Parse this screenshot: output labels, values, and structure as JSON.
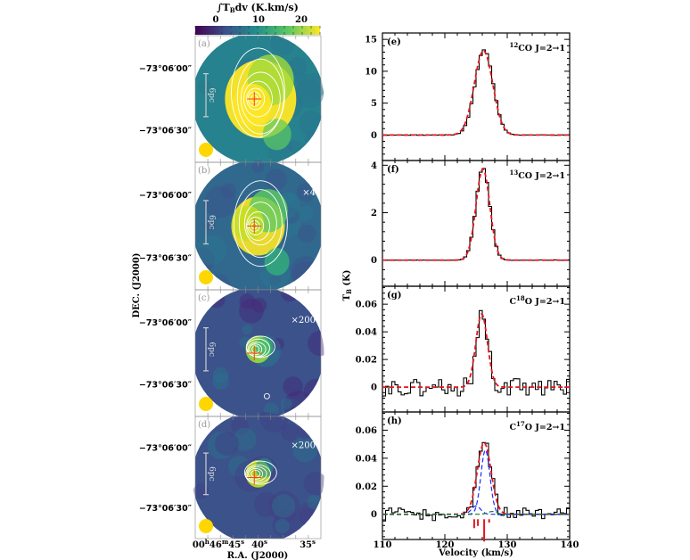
{
  "figure": {
    "colorbar": {
      "label": "∫T",
      "label_sub": "B",
      "label_rest": "dv  (K.km/s)",
      "ticks": [
        "0",
        "10",
        "20"
      ],
      "range": [
        -3,
        24
      ],
      "colormap": [
        "#440154",
        "#3b528b",
        "#21918c",
        "#5ec962",
        "#fde725"
      ]
    },
    "maps": {
      "dec_axis_label": "DEC. (J2000)",
      "ra_axis_label": "R.A. (J2000)",
      "dec_ticks": [
        "−73°06′00″",
        "−73°06′30″"
      ],
      "ra_ticks": [
        {
          "h": "00",
          "hs": "h",
          "m": "46",
          "ms": "m",
          "s": "45",
          "ss": "s"
        },
        {
          "s": "40",
          "ss": "s"
        },
        {
          "s": "35",
          "ss": "s"
        }
      ],
      "scale_bar_label": "6pc",
      "beam_color": "#ffd700",
      "marker_color": "#ff3b1a",
      "panels": [
        {
          "id": "(a)",
          "scale": "",
          "line": "12CO"
        },
        {
          "id": "(b)",
          "scale": "×4",
          "line": "13CO"
        },
        {
          "id": "(c)",
          "scale": "×200",
          "line": "C18O"
        },
        {
          "id": "(d)",
          "scale": "×200",
          "line": "C17O"
        }
      ]
    },
    "spectra_axis": {
      "xlabel": "Velocity (km/s)",
      "ylabel": "T",
      "ylabel_sub": "B",
      "ylabel_rest": " (K)",
      "x_ticks": [
        "110",
        "120",
        "130",
        "140"
      ]
    }
  },
  "chart_data": [
    {
      "type": "line",
      "title": "(e) 12CO J=2→1",
      "panel": "(e)",
      "line_label": {
        "pre": "",
        "sup": "12",
        "mol": "CO  J=2→1"
      },
      "xlabel": "Velocity (km/s)",
      "ylabel": "T_B (K)",
      "xlim": [
        110,
        140
      ],
      "ylim": [
        -4,
        16
      ],
      "y_ticks": [
        0,
        5,
        10,
        15
      ],
      "series": [
        {
          "name": "observed",
          "style": "histogram",
          "color": "#000000",
          "peak": 13.4,
          "center": 126.3,
          "fwhm": 3.4,
          "noise": 0.05
        },
        {
          "name": "gaussian fit",
          "style": "dashed",
          "color": "#e8141c",
          "peak": 13.2,
          "center": 126.2,
          "fwhm": 3.5
        }
      ]
    },
    {
      "type": "line",
      "title": "(f) 13CO J=2→1",
      "panel": "(f)",
      "line_label": {
        "pre": "",
        "sup": "13",
        "mol": "CO  J=2→1"
      },
      "xlabel": "Velocity (km/s)",
      "ylabel": "T_B (K)",
      "xlim": [
        110,
        140
      ],
      "ylim": [
        -1.1,
        4.2
      ],
      "y_ticks": [
        0,
        2,
        4
      ],
      "series": [
        {
          "name": "observed",
          "style": "histogram",
          "color": "#000000",
          "peak": 3.9,
          "center": 126.1,
          "fwhm": 2.6,
          "noise": 0.01
        },
        {
          "name": "gaussian fit",
          "style": "dashed",
          "color": "#e8141c",
          "peak": 3.85,
          "center": 126.1,
          "fwhm": 2.6
        }
      ]
    },
    {
      "type": "line",
      "title": "(g) C18O J=2→1",
      "panel": "(g)",
      "line_label": {
        "pre": "C",
        "sup": "18",
        "mol": "O  J=2→1"
      },
      "xlabel": "Velocity (km/s)",
      "ylabel": "T_B (K)",
      "xlim": [
        110,
        140
      ],
      "ylim": [
        -0.018,
        0.073
      ],
      "y_ticks": [
        0,
        0.02,
        0.04,
        0.06
      ],
      "series": [
        {
          "name": "observed",
          "style": "histogram",
          "color": "#000000",
          "peak": 0.057,
          "center": 126.0,
          "fwhm": 2.1,
          "noise": 0.004
        },
        {
          "name": "gaussian fit",
          "style": "dashed",
          "color": "#e8141c",
          "peak": 0.053,
          "center": 125.9,
          "fwhm": 2.2
        }
      ]
    },
    {
      "type": "line",
      "title": "(h) C17O J=2→1",
      "panel": "(h)",
      "line_label": {
        "pre": "C",
        "sup": "17",
        "mol": "O  J=2→1"
      },
      "xlabel": "Velocity (km/s)",
      "ylabel": "T_B (K)",
      "xlim": [
        110,
        140
      ],
      "ylim": [
        -0.018,
        0.073
      ],
      "y_ticks": [
        0,
        0.02,
        0.04,
        0.06
      ],
      "series": [
        {
          "name": "observed",
          "style": "histogram",
          "color": "#000000",
          "peak": 0.051,
          "center": 126.3,
          "fwhm": 2.6,
          "noise": 0.003
        },
        {
          "name": "hyperfine fit (total)",
          "style": "dashed",
          "color": "#e8141c",
          "peak": 0.051,
          "center": 126.3,
          "fwhm": 2.6
        },
        {
          "name": "component 1",
          "style": "dashed",
          "color": "#1a2cff",
          "peak": 0.046,
          "center": 126.5,
          "fwhm": 1.7
        },
        {
          "name": "component 2",
          "style": "dashed",
          "color": "#1a2cff",
          "peak": 0.006,
          "center": 125.0,
          "fwhm": 1.7
        },
        {
          "name": "component 3",
          "style": "dashed",
          "color": "#1a7a1a",
          "peak": 0.002,
          "center": 127.6,
          "fwhm": 1.7
        }
      ],
      "hyperfine_markers": [
        {
          "v": 124.7,
          "rel": 0.4
        },
        {
          "v": 125.3,
          "rel": 0.3
        },
        {
          "v": 126.3,
          "rel": 1.0
        },
        {
          "v": 127.1,
          "rel": 0.15
        }
      ]
    }
  ]
}
